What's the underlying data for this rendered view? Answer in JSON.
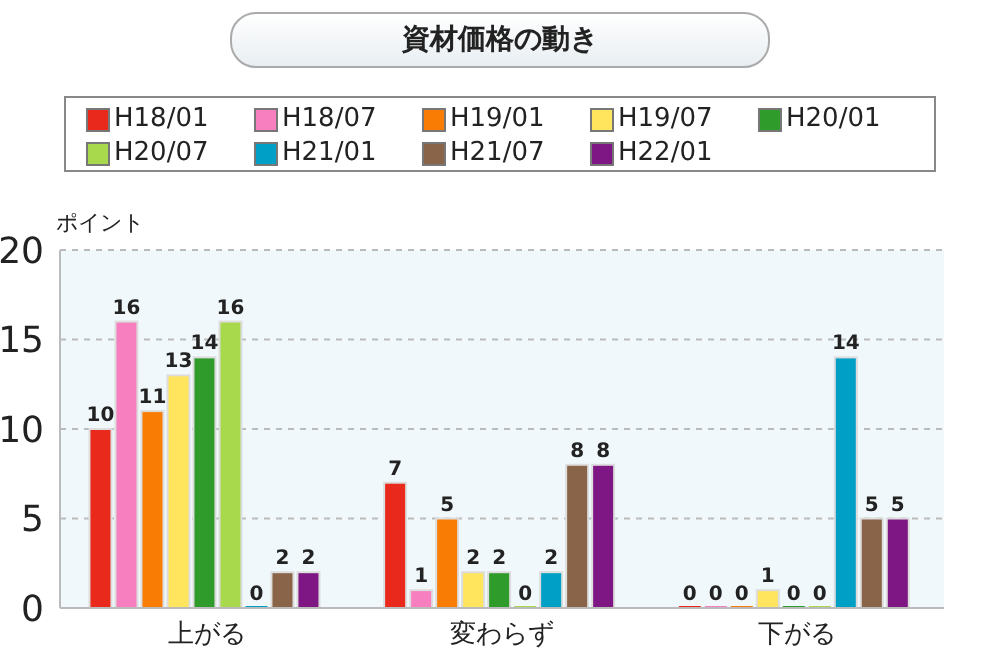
{
  "chart_data": {
    "type": "bar",
    "title": "資材価格の動き",
    "ylabel": "ポイント",
    "categories": [
      "上がる",
      "変わらず",
      "下がる"
    ],
    "series": [
      {
        "name": "H18/01",
        "color": "#e8291c",
        "values": [
          10,
          7,
          0
        ]
      },
      {
        "name": "H18/07",
        "color": "#f77fbf",
        "values": [
          16,
          1,
          0
        ]
      },
      {
        "name": "H19/01",
        "color": "#f97d05",
        "values": [
          11,
          5,
          0
        ]
      },
      {
        "name": "H19/07",
        "color": "#ffe45e",
        "values": [
          13,
          2,
          1
        ]
      },
      {
        "name": "H20/01",
        "color": "#2f9b2b",
        "values": [
          14,
          2,
          0
        ]
      },
      {
        "name": "H20/07",
        "color": "#a8d84b",
        "values": [
          16,
          0,
          0
        ]
      },
      {
        "name": "H21/01",
        "color": "#00a0c6",
        "values": [
          0,
          2,
          14
        ]
      },
      {
        "name": "H21/07",
        "color": "#8a6448",
        "values": [
          2,
          8,
          5
        ]
      },
      {
        "name": "H22/01",
        "color": "#7e1783",
        "values": [
          2,
          8,
          5
        ]
      }
    ],
    "ylim": [
      0,
      20
    ],
    "yticks": [
      0,
      5,
      10,
      15,
      20
    ],
    "grid": "y",
    "legend": "top",
    "data_labels": true
  }
}
